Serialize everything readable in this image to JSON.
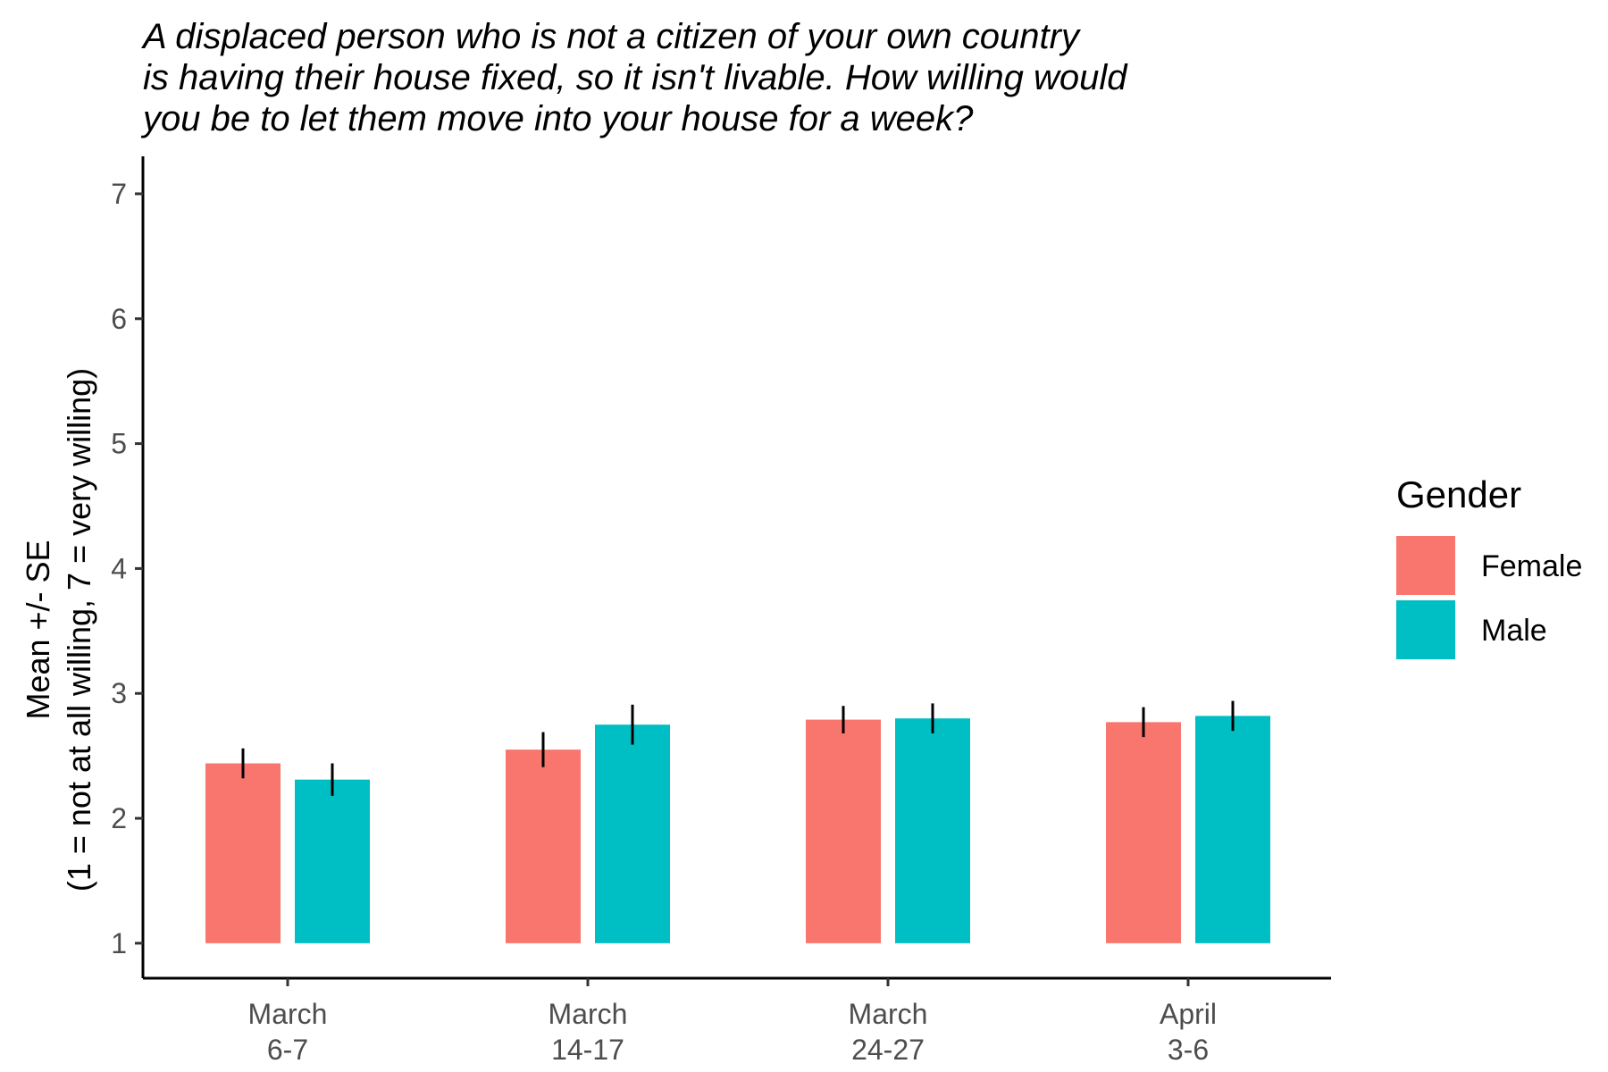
{
  "chart_data": {
    "type": "bar",
    "title_lines": [
      "A displaced person who is not a citizen of your own country",
      "is having their house fixed, so it isn't livable. How willing would",
      "you be to let them move into your house for a week?"
    ],
    "ylabel_lines": [
      "Mean +/- SE",
      "(1 = not at all willing, 7 = very willing)"
    ],
    "xlabel": "",
    "categories": [
      [
        "March",
        "6-7"
      ],
      [
        "March",
        "14-17"
      ],
      [
        "March",
        "24-27"
      ],
      [
        "April",
        "3-6"
      ]
    ],
    "ylim": [
      0.72,
      7.3
    ],
    "bar_base": 1,
    "yticks": [
      1,
      2,
      3,
      4,
      5,
      6,
      7
    ],
    "grid": false,
    "legend": {
      "title": "Gender",
      "position": "right"
    },
    "series": [
      {
        "name": "Female",
        "color": "#F8766D",
        "values": [
          2.44,
          2.55,
          2.79,
          2.77
        ],
        "se": [
          0.12,
          0.14,
          0.11,
          0.12
        ]
      },
      {
        "name": "Male",
        "color": "#00BFC4",
        "values": [
          2.31,
          2.75,
          2.8,
          2.82
        ],
        "se": [
          0.13,
          0.16,
          0.12,
          0.12
        ]
      }
    ]
  }
}
